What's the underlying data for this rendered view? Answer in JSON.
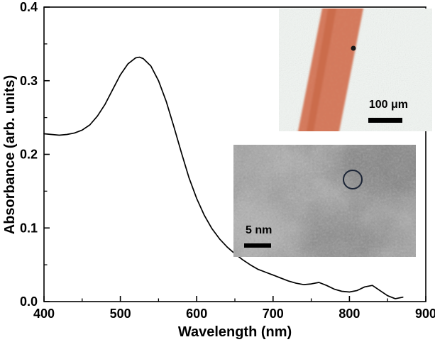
{
  "chart_data": {
    "type": "line",
    "title": "",
    "xlabel": "Wavelength (nm)",
    "ylabel": "Absorbance (arb. units)",
    "xlim": [
      400,
      900
    ],
    "ylim": [
      0,
      0.4
    ],
    "x_tick_labels": [
      "400",
      "500",
      "600",
      "700",
      "800",
      "900"
    ],
    "y_tick_labels": [
      "0.0",
      "0.1",
      "0.2",
      "0.3",
      "0.4"
    ],
    "x_minor_step": 50,
    "y_minor_step": 0.05,
    "grid": false,
    "legend": "none",
    "line_color": "#000000",
    "series": [
      {
        "name": "absorbance-spectrum",
        "x": [
          400,
          410,
          420,
          430,
          440,
          450,
          460,
          470,
          480,
          490,
          500,
          510,
          520,
          525,
          530,
          540,
          550,
          560,
          570,
          580,
          590,
          600,
          610,
          620,
          630,
          640,
          650,
          660,
          670,
          680,
          690,
          700,
          710,
          720,
          730,
          740,
          750,
          760,
          770,
          780,
          790,
          800,
          810,
          820,
          830,
          840,
          850,
          860,
          870
        ],
        "y": [
          0.228,
          0.227,
          0.226,
          0.227,
          0.229,
          0.233,
          0.24,
          0.252,
          0.268,
          0.288,
          0.308,
          0.323,
          0.331,
          0.332,
          0.33,
          0.32,
          0.3,
          0.272,
          0.238,
          0.202,
          0.168,
          0.14,
          0.117,
          0.099,
          0.085,
          0.074,
          0.065,
          0.057,
          0.05,
          0.044,
          0.04,
          0.036,
          0.032,
          0.028,
          0.025,
          0.023,
          0.024,
          0.026,
          0.022,
          0.017,
          0.014,
          0.013,
          0.015,
          0.02,
          0.022,
          0.015,
          0.008,
          0.004,
          0.006
        ],
        "peak_wavelength_nm": 525,
        "peak_absorbance": 0.332
      }
    ]
  },
  "insets": {
    "optical": {
      "scale_label": "100 μm",
      "stripe_color": "#d8714f",
      "background_color": "#f1f5f2"
    },
    "tem": {
      "scale_label": "5 nm",
      "base_gray": "#9b9b9b",
      "circle_color": "#1c2536"
    }
  }
}
